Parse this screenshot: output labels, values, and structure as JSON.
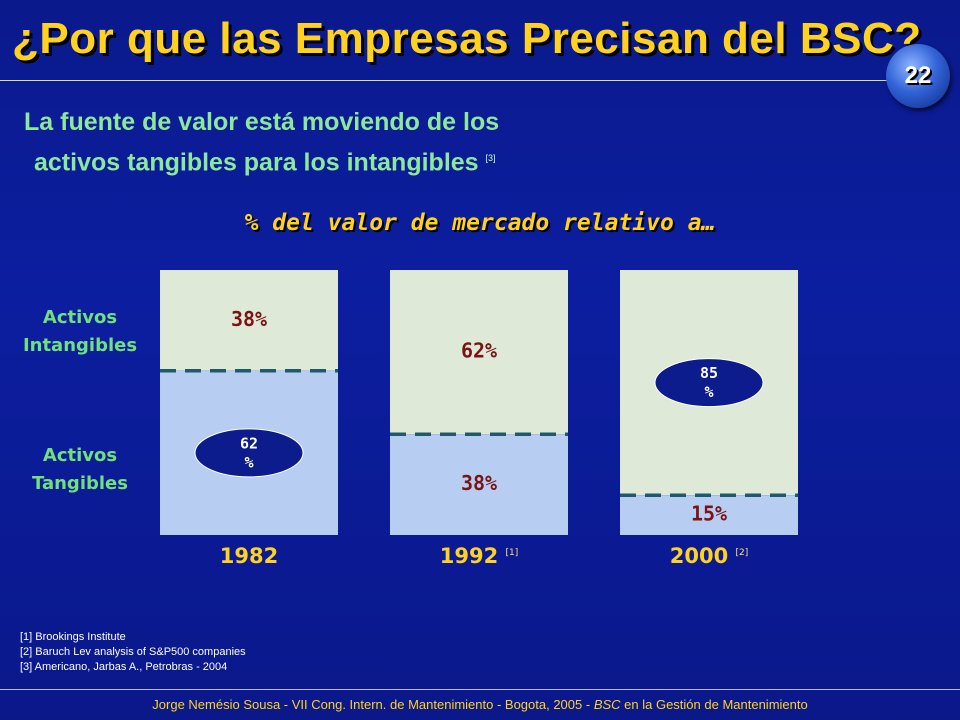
{
  "slide": {
    "title": "¿Por que las Empresas Precisan del BSC?",
    "page_number": "22",
    "subtitle_line1": "La fuente de valor está moviendo de los",
    "subtitle_line2": "activos tangibles para los intangibles",
    "subtitle_ref": "[3]"
  },
  "chart_data": {
    "type": "bar",
    "stacked": true,
    "title": "% del valor de mercado relativo a…",
    "categories": [
      "1982",
      "1992",
      "2000"
    ],
    "category_refs": [
      "",
      "[1]",
      "[2]"
    ],
    "series": [
      {
        "name": "Activos Tangibles",
        "values": [
          62,
          38,
          15
        ],
        "labels": [
          "62 %",
          "38%",
          "15%"
        ]
      },
      {
        "name": "Activos Intangibles",
        "values": [
          38,
          62,
          85
        ],
        "labels": [
          "38%",
          "62%",
          "85 %"
        ]
      }
    ],
    "ylim": [
      0,
      100
    ],
    "highlighted": [
      "62 %",
      "85 %"
    ],
    "colors": {
      "tangible_fill": "#b8cdf2",
      "intangible_fill": "#dfe9d8",
      "divider": "#1f5a6a",
      "value_text": "#7a1414",
      "ellipse_fill": "#0c1c8c",
      "ellipse_text": "#ffffff"
    }
  },
  "footnotes": [
    "[1] Brookings Institute",
    "[2] Baruch Lev analysis of S&P500 companies",
    "[3] Americano, Jarbas A., Petrobras - 2004"
  ],
  "footer": {
    "text": "Jorge Nemésio Sousa - VII Cong. Intern. de Mantenimiento - Bogota, 2005 - ",
    "emphasis": "BSC",
    "suffix": " en la Gestión de Mantenimiento"
  }
}
